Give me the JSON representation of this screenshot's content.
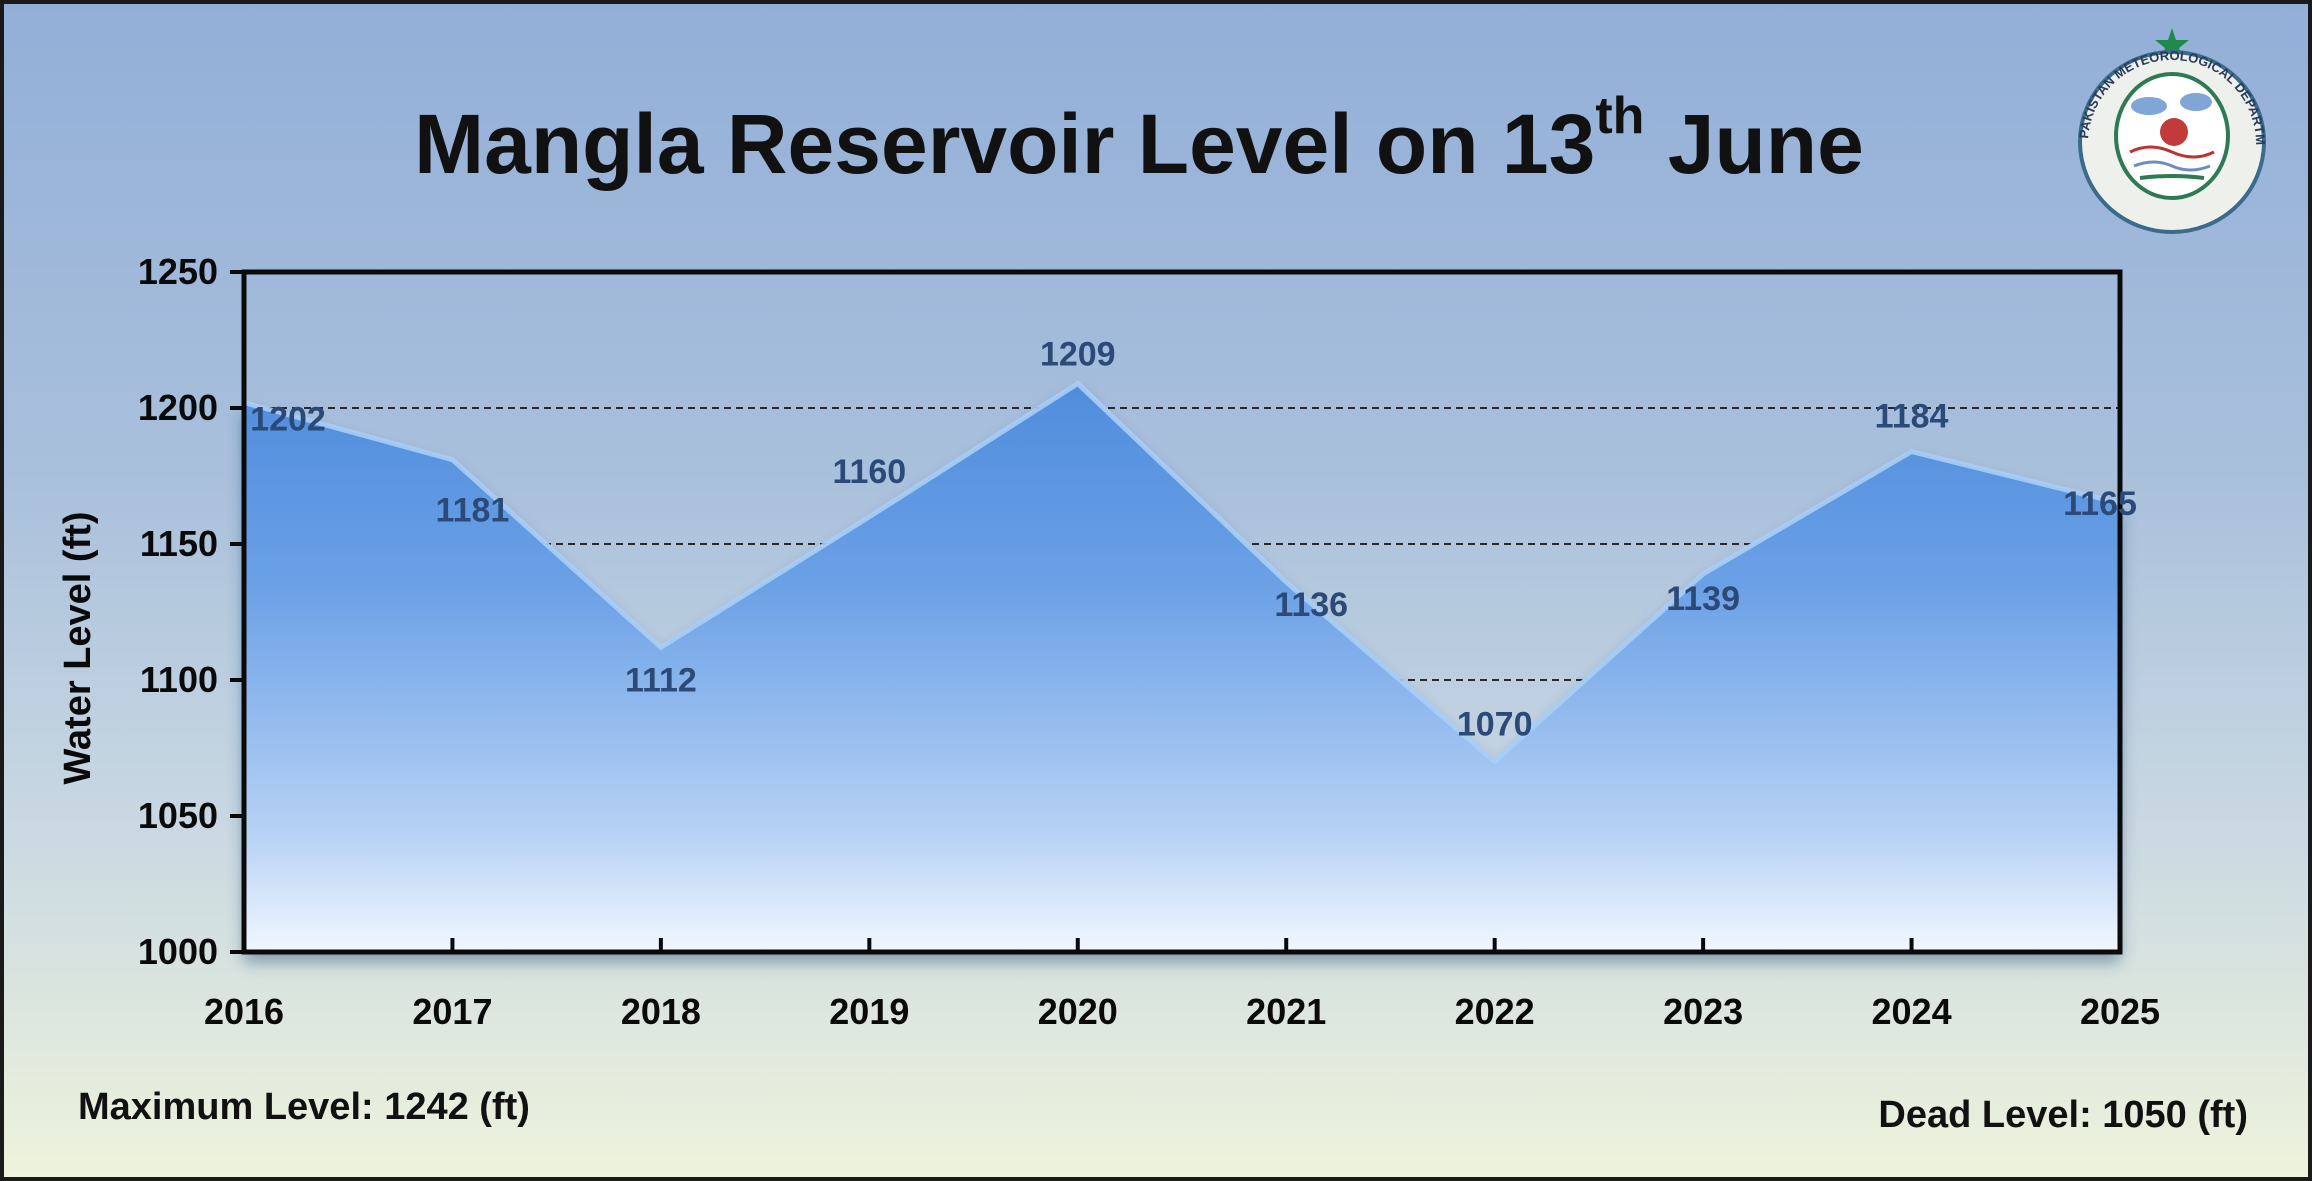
{
  "title": {
    "main": "Mangla Reservoir Level on 13",
    "sup": "th",
    "tail": " June"
  },
  "logo": {
    "name": "Pakistan Meteorological Department seal",
    "ring_text": "PAKISTAN METEOROLOGICAL DEPARTMENT"
  },
  "footer": {
    "max_level": "Maximum Level: 1242 (ft)",
    "dead_level": "Dead Level: 1050 (ft)"
  },
  "colors": {
    "area_top": "#5a96e0",
    "area_bottom": "#dbe9fb",
    "label": "#2b4a78",
    "grid": "#333333"
  },
  "chart_data": {
    "type": "area",
    "x": [
      "2016",
      "2017",
      "2018",
      "2019",
      "2020",
      "2021",
      "2022",
      "2023",
      "2024",
      "2025"
    ],
    "values": [
      1202,
      1181,
      1112,
      1160,
      1209,
      1136,
      1070,
      1139,
      1184,
      1165
    ],
    "data_labels": [
      "1202",
      "1181",
      "1112",
      "1160",
      "1209",
      "1136",
      "1070",
      "1139",
      "1184",
      "1165"
    ],
    "ylabel": "Water Level (ft)",
    "xlabel": "",
    "ylim": [
      1000,
      1250
    ],
    "yticks": [
      1000,
      1050,
      1100,
      1150,
      1200,
      1250
    ],
    "grid": "horizontal dashed",
    "legend": "none"
  }
}
